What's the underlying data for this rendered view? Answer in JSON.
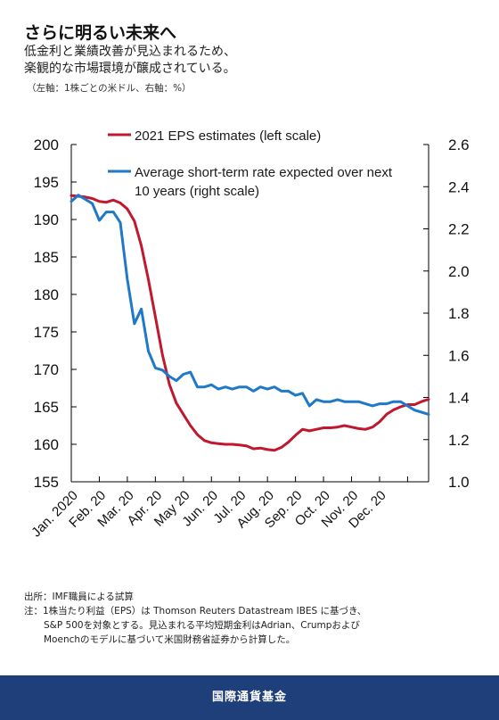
{
  "header": {
    "title": "さらに明るい未来へ",
    "subtitle_line1": "低金利と業績改善が見込まれるため、",
    "subtitle_line2": "楽観的な市場環境が醸成されている。",
    "units": "（左軸：1株ごとの米ドル、右軸：%）"
  },
  "chart_data": {
    "type": "line",
    "title": "さらに明るい未来へ",
    "x_tick_labels": [
      "Jan. 2020",
      "Feb. 20",
      "Mar. 20",
      "Apr. 20",
      "May 20",
      "Jun. 20",
      "Jul. 20",
      "Aug. 20",
      "Sep. 20",
      "Oct. 20",
      "Nov. 20",
      "Dec. 20"
    ],
    "left_axis": {
      "range": [
        155,
        200
      ],
      "ticks": [
        155,
        160,
        165,
        170,
        175,
        180,
        185,
        190,
        195,
        200
      ]
    },
    "right_axis": {
      "range": [
        1.0,
        2.6
      ],
      "ticks": [
        "1.0",
        "1.2",
        "1.4",
        "1.6",
        "1.8",
        "2.0",
        "2.2",
        "2.4",
        "2.6"
      ]
    },
    "grid": false,
    "legend_position": "top",
    "series": [
      {
        "name": "2021 EPS estimates (left scale)",
        "axis": "left",
        "color": "#c0182e",
        "points": [
          [
            0,
            193.2
          ],
          [
            0.25,
            193.1
          ],
          [
            0.5,
            193.0
          ],
          [
            0.75,
            192.8
          ],
          [
            1.0,
            192.4
          ],
          [
            1.25,
            192.3
          ],
          [
            1.5,
            192.6
          ],
          [
            1.75,
            192.2
          ],
          [
            2.0,
            191.4
          ],
          [
            2.25,
            189.8
          ],
          [
            2.5,
            186.5
          ],
          [
            2.75,
            182.0
          ],
          [
            3.0,
            177.0
          ],
          [
            3.25,
            172.0
          ],
          [
            3.5,
            168.0
          ],
          [
            3.75,
            165.5
          ],
          [
            4.0,
            164.0
          ],
          [
            4.25,
            162.5
          ],
          [
            4.5,
            161.3
          ],
          [
            4.75,
            160.5
          ],
          [
            5.0,
            160.2
          ],
          [
            5.25,
            160.1
          ],
          [
            5.5,
            160.0
          ],
          [
            5.75,
            160.0
          ],
          [
            6.0,
            159.9
          ],
          [
            6.25,
            159.8
          ],
          [
            6.5,
            159.4
          ],
          [
            6.75,
            159.5
          ],
          [
            7.0,
            159.3
          ],
          [
            7.25,
            159.2
          ],
          [
            7.5,
            159.6
          ],
          [
            7.75,
            160.3
          ],
          [
            8.0,
            161.2
          ],
          [
            8.25,
            162.0
          ],
          [
            8.5,
            161.8
          ],
          [
            8.75,
            162.0
          ],
          [
            9.0,
            162.2
          ],
          [
            9.25,
            162.2
          ],
          [
            9.5,
            162.3
          ],
          [
            9.75,
            162.5
          ],
          [
            10.0,
            162.3
          ],
          [
            10.25,
            162.1
          ],
          [
            10.5,
            162.0
          ],
          [
            10.75,
            162.3
          ],
          [
            11.0,
            163.0
          ],
          [
            11.25,
            164.0
          ],
          [
            11.5,
            164.6
          ],
          [
            11.75,
            165.0
          ],
          [
            12.0,
            165.3
          ],
          [
            12.25,
            165.3
          ],
          [
            12.5,
            165.7
          ],
          [
            12.75,
            166.0
          ]
        ]
      },
      {
        "name": "Average short-term rate expected over next 10 years (right scale)",
        "axis": "right",
        "color": "#1f78c8",
        "points": [
          [
            0,
            2.33
          ],
          [
            0.25,
            2.36
          ],
          [
            0.5,
            2.34
          ],
          [
            0.75,
            2.32
          ],
          [
            1.0,
            2.24
          ],
          [
            1.25,
            2.28
          ],
          [
            1.5,
            2.28
          ],
          [
            1.75,
            2.23
          ],
          [
            2.0,
            1.96
          ],
          [
            2.25,
            1.75
          ],
          [
            2.5,
            1.82
          ],
          [
            2.75,
            1.62
          ],
          [
            3.0,
            1.54
          ],
          [
            3.25,
            1.53
          ],
          [
            3.5,
            1.5
          ],
          [
            3.75,
            1.48
          ],
          [
            4.0,
            1.51
          ],
          [
            4.25,
            1.52
          ],
          [
            4.5,
            1.45
          ],
          [
            4.75,
            1.45
          ],
          [
            5.0,
            1.46
          ],
          [
            5.25,
            1.44
          ],
          [
            5.5,
            1.45
          ],
          [
            5.75,
            1.44
          ],
          [
            6.0,
            1.45
          ],
          [
            6.25,
            1.45
          ],
          [
            6.5,
            1.43
          ],
          [
            6.75,
            1.45
          ],
          [
            7.0,
            1.44
          ],
          [
            7.25,
            1.45
          ],
          [
            7.5,
            1.43
          ],
          [
            7.75,
            1.43
          ],
          [
            8.0,
            1.41
          ],
          [
            8.25,
            1.42
          ],
          [
            8.5,
            1.36
          ],
          [
            8.75,
            1.39
          ],
          [
            9.0,
            1.38
          ],
          [
            9.25,
            1.38
          ],
          [
            9.5,
            1.39
          ],
          [
            9.75,
            1.38
          ],
          [
            10.0,
            1.38
          ],
          [
            10.25,
            1.38
          ],
          [
            10.5,
            1.37
          ],
          [
            10.75,
            1.36
          ],
          [
            11.0,
            1.37
          ],
          [
            11.25,
            1.37
          ],
          [
            11.5,
            1.38
          ],
          [
            11.75,
            1.38
          ],
          [
            12.0,
            1.36
          ],
          [
            12.25,
            1.34
          ],
          [
            12.5,
            1.33
          ],
          [
            12.75,
            1.32
          ]
        ]
      }
    ],
    "legend": {
      "eps_label": "2021 EPS estimates (left scale)",
      "rate_label_line1": "Average short-term rate expected over next",
      "rate_label_line2": "10 years (right scale)"
    }
  },
  "notes": {
    "source": "出所：IMF職員による試算",
    "note_line1": "注：1株当たり利益（EPS）は Thomson Reuters Datastream IBES に基づき、",
    "note_line2": "S&P 500を対象とする。見込まれる平均短期金利はAdrian、Crumpおよび",
    "note_line3": "Moenchのモデルに基づいて米国財務省証券から計算した。"
  },
  "footer": {
    "label": "国際通貨基金"
  }
}
